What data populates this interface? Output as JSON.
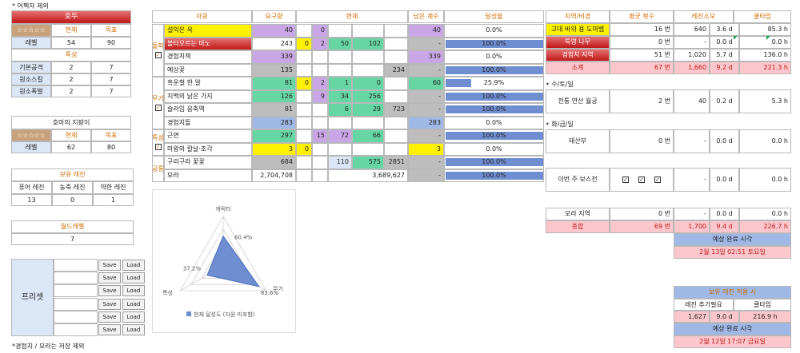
{
  "note_top": "* 어펙자 제외",
  "note_bottom": "*경험치 / 모라는 저장 제외",
  "left": {
    "char_name": "호두",
    "stars": "☆☆☆☆☆",
    "col_current": "현재",
    "col_target": "목표",
    "level_label": "레벨",
    "level_current": "54",
    "level_target": "90",
    "talent_header": "특성",
    "talents": [
      {
        "label": "기본공격",
        "current": "2",
        "target": "7"
      },
      {
        "label": "원소스킬",
        "current": "2",
        "target": "7"
      },
      {
        "label": "원소폭발",
        "current": "2",
        "target": "7"
      }
    ],
    "weapon_name": "호마의 지팡이",
    "weapon_stars": "☆☆☆☆☆",
    "weapon_col_current": "현재",
    "weapon_col_target": "목표",
    "weapon_level_label": "레벨",
    "weapon_current": "62",
    "weapon_target": "80",
    "resin_header": "보유 레진",
    "resin_cols": [
      "퓨어 레진",
      "농축 레진",
      "약한 레진"
    ],
    "resin_vals": [
      "13",
      "0",
      "1"
    ],
    "world_header": "월드레벨",
    "world_val": "7",
    "preset_label": "프리셋",
    "save_label": "Save",
    "load_label": "Load"
  },
  "mid": {
    "headers": {
      "material": "자원",
      "need": "요구량",
      "current": "현재",
      "remain": "남은 계수",
      "rate": "달성율"
    },
    "groups": [
      {
        "name": "돌파",
        "checked": "✓"
      },
      {
        "name": "무기",
        "checked": "✓"
      },
      {
        "name": "특성",
        "checked": "✓"
      },
      {
        "name": "공통",
        "checked": ""
      }
    ],
    "rows": [
      {
        "name": "설익은 옥",
        "need": "40",
        "c1": "",
        "c2": "0",
        "c3": "",
        "c4": "",
        "c5": "",
        "remain": "40",
        "rate": "0.0%",
        "pct": 0
      },
      {
        "name": "불타오르는 마노",
        "need": "243",
        "c1": "0",
        "c2": "2",
        "c3": "50",
        "c4": "102",
        "c5": "",
        "remain": "-",
        "rate": "100.0%",
        "pct": 1
      },
      {
        "name": "경험치책",
        "need": "339",
        "c1": "",
        "c2": "",
        "c3": "",
        "c4": "",
        "c5": "",
        "remain": "339",
        "rate": "0.0%",
        "pct": 0
      },
      {
        "name": "예상꽃",
        "need": "135",
        "c1": "",
        "c2": "",
        "c3": "",
        "c4": "",
        "c5": "234",
        "remain": "-",
        "rate": "100.0%",
        "pct": 1
      },
      {
        "name": "흑운철 한 알",
        "need": "81",
        "c1": "0",
        "c2": "2",
        "c3": "1",
        "c4": "0",
        "c5": "",
        "remain": "60",
        "rate": "25.9%",
        "pct": 0.259
      },
      {
        "name": "지맥의 낡은 가지",
        "need": "126",
        "c1": "",
        "c2": "9",
        "c3": "34",
        "c4": "256",
        "c5": "",
        "remain": "-",
        "rate": "100.0%",
        "pct": 1
      },
      {
        "name": "슬라임 응축액",
        "need": "81",
        "c1": "",
        "c2": "",
        "c3": "6",
        "c4": "29",
        "c5": "723",
        "remain": "-",
        "rate": "100.0%",
        "pct": 1
      },
      {
        "name": "경험치돌",
        "need": "283",
        "c1": "",
        "c2": "",
        "c3": "",
        "c4": "",
        "c5": "",
        "remain": "283",
        "rate": "0.0%",
        "pct": 0
      },
      {
        "name": "근면",
        "need": "297",
        "c1": "",
        "c2": "15",
        "c3": "72",
        "c4": "66",
        "c5": "",
        "remain": "-",
        "rate": "100.0%",
        "pct": 1
      },
      {
        "name": "마왕의 칼날·조각",
        "need": "3",
        "c1": "0",
        "c2": "",
        "c3": "",
        "c4": "",
        "c5": "",
        "remain": "3",
        "rate": "0.0%",
        "pct": 0
      },
      {
        "name": "구리구라 꽃꽃",
        "need": "684",
        "c1": "",
        "c2": "",
        "c3": "110",
        "c4": "575",
        "c5": "2851",
        "remain": "-",
        "rate": "100.0%",
        "pct": 1
      },
      {
        "name": "모라",
        "need": "2,704,708",
        "c1": "",
        "c2": "",
        "c3": "",
        "c4": "3,689,627",
        "c5": "",
        "remain": "-",
        "rate": "100.0%",
        "pct": 1
      }
    ]
  },
  "radar": {
    "axes": [
      "캐릭터",
      "무기",
      "특성"
    ],
    "values": [
      0.604,
      0.836,
      0.372
    ],
    "labels": [
      "60.4%",
      "83.6%",
      "37.2%"
    ],
    "legend": "현재 달성도 (자원 미포함)"
  },
  "right": {
    "headers": {
      "region": "지역/비경",
      "avg": "평균 횟수",
      "resin": "레진소모",
      "cool": "쿨타임"
    },
    "rows": [
      {
        "region": "고대 바위 용 도마뱀",
        "avg": "16 번",
        "resin": "640",
        "d": "3.6 d",
        "h": "85.3 h"
      },
      {
        "region": "특영 나무",
        "avg": "0 번",
        "resin": "-",
        "d": "0.0 d",
        "h": "0.0 h"
      },
      {
        "region": "경험치 지역",
        "avg": "51 번",
        "resin": "1,020",
        "d": "5.7 d",
        "h": "136.0 h"
      }
    ],
    "subtotal": {
      "label": "소계",
      "avg": "67 번",
      "resin": "1,660",
      "d": "9.2 d",
      "h": "221.3 h"
    },
    "day1": "• 수/토/일",
    "day1_row": {
      "region": "전통 연산 월궁",
      "avg": "2 번",
      "resin": "40",
      "d": "0.2 d",
      "h": "5.3 h"
    },
    "day2": "• 화/금/일",
    "day2_row": {
      "region": "태산부",
      "avg": "0 번",
      "resin": "-",
      "d": "0.0 d",
      "h": "0.0 h"
    },
    "boss_row": {
      "region": "이번 주 보스전",
      "avg": "",
      "resin": "-",
      "d": "0.0 d",
      "h": "0.0 h"
    },
    "mora_row": {
      "region": "모라 지역",
      "avg": "0 번",
      "resin": "-",
      "d": "0.0 d",
      "h": "0.0 h"
    },
    "total": {
      "label": "총합",
      "avg": "69 번",
      "resin": "1,700",
      "d": "9.4 d",
      "h": "226.7 h"
    },
    "eta_label": "예상 완료 시각",
    "eta_val": "2월 13일 02:51 토요일",
    "held_header": "보유 레진 적용 시",
    "held_cols": [
      "레진 추가필요",
      "쿨타임"
    ],
    "held_vals": {
      "resin": "1,627",
      "d": "9.0 d",
      "h": "216.9 h"
    },
    "held_eta_label": "예상 완료 시각",
    "held_eta_val": "2월 12일 17:07 금요일"
  },
  "colors": {
    "accent": "#d06a00",
    "red": "#c01818",
    "blue": "#6f8ed1"
  }
}
